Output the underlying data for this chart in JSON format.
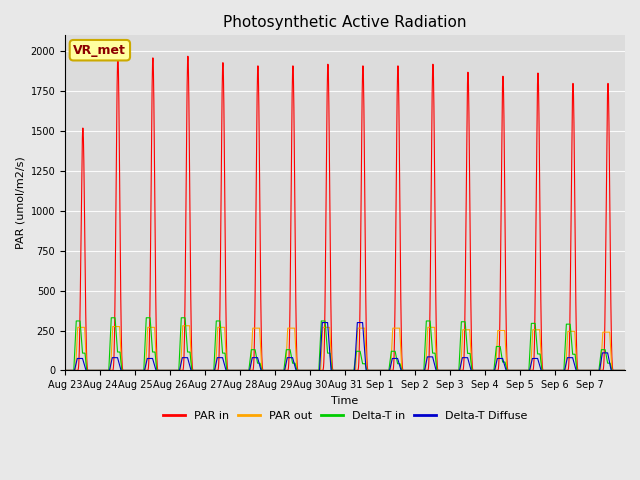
{
  "title": "Photosynthetic Active Radiation",
  "xlabel": "Time",
  "ylabel": "PAR (umol/m2/s)",
  "annotation_text": "VR_met",
  "annotation_color": "#8B0000",
  "annotation_bg": "#FFFFA0",
  "annotation_border": "#CCAA00",
  "color_par_in": "#FF0000",
  "color_par_out": "#FFA500",
  "color_delta_t_in": "#00CC00",
  "color_delta_t_diffuse": "#0000CC",
  "legend_labels": [
    "PAR in",
    "PAR out",
    "Delta-T in",
    "Delta-T Diffuse"
  ],
  "ylim": [
    0,
    2100
  ],
  "bg_color": "#DCDCDC",
  "fig_bg_color": "#E8E8E8",
  "title_fontsize": 11,
  "axis_label_fontsize": 8,
  "tick_fontsize": 7,
  "n_days": 16,
  "x_tick_labels": [
    "Aug 23",
    "Aug 24",
    "Aug 25",
    "Aug 26",
    "Aug 27",
    "Aug 28",
    "Aug 29",
    "Aug 30",
    "Aug 31",
    "Sep 1",
    "Sep 2",
    "Sep 3",
    "Sep 4",
    "Sep 5",
    "Sep 6",
    "Sep 7"
  ],
  "par_in_peaks": [
    1520,
    1970,
    1960,
    1970,
    1930,
    1910,
    1910,
    1920,
    1910,
    1910,
    1920,
    1870,
    1845,
    1865,
    1800,
    1800
  ],
  "par_out_peaks": [
    270,
    275,
    270,
    280,
    270,
    265,
    265,
    270,
    265,
    265,
    270,
    255,
    250,
    255,
    245,
    240
  ],
  "delta_t_in_peaks": [
    310,
    330,
    330,
    330,
    310,
    130,
    130,
    310,
    120,
    120,
    310,
    305,
    150,
    295,
    290,
    130
  ],
  "delta_t_diffuse_peaks": [
    75,
    80,
    75,
    80,
    80,
    80,
    80,
    300,
    300,
    75,
    85,
    80,
    75,
    75,
    80,
    110
  ],
  "pts_per_day": 240
}
